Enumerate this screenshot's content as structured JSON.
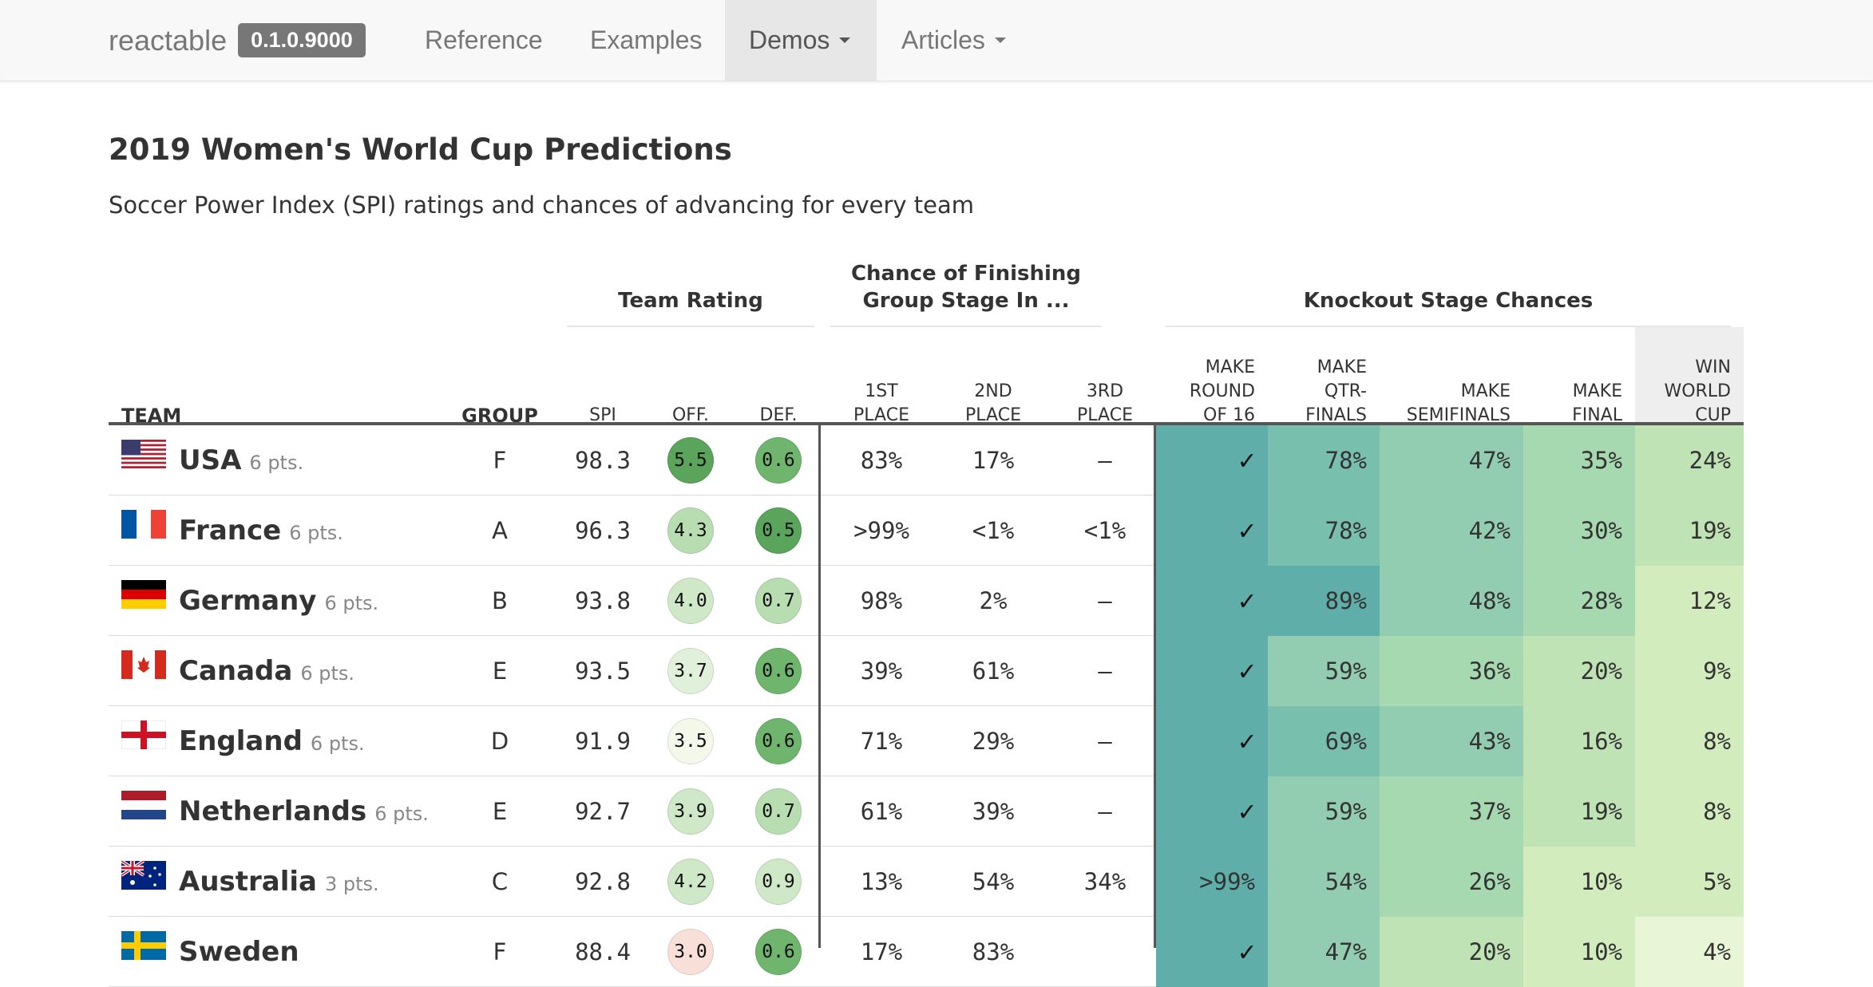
{
  "navbar": {
    "brand": "reactable",
    "version": "0.1.0.9000",
    "items": [
      {
        "label": "Reference",
        "active": false,
        "dropdown": false
      },
      {
        "label": "Examples",
        "active": false,
        "dropdown": false
      },
      {
        "label": "Demos",
        "active": true,
        "dropdown": true
      },
      {
        "label": "Articles",
        "active": false,
        "dropdown": true
      }
    ]
  },
  "page": {
    "title": "2019 Women's World Cup Predictions",
    "subtitle": "Soccer Power Index (SPI) ratings and chances of advancing for every team"
  },
  "table": {
    "groups": {
      "team_rating": "Team Rating",
      "group_stage": "Chance of Finishing Group Stage In ...",
      "knockout": "Knockout Stage Chances"
    },
    "columns": {
      "team": "Team",
      "group": "Group",
      "spi": "SPI",
      "off": "Off.",
      "def": "Def.",
      "first": "1st Place",
      "second": "2nd Place",
      "third": "3rd Place",
      "r16": "Make Round of 16",
      "qtr": "Make Qtr-finals",
      "semi": "Make Semifinals",
      "final": "Make Final",
      "win": "Win World Cup"
    },
    "rows": [
      {
        "flag": "usa-flag",
        "team": "USA",
        "pts": "6 pts.",
        "group": "F",
        "spi": "98.3",
        "off": "5.5",
        "def": "0.6",
        "first": "83%",
        "second": "17%",
        "third": "–",
        "r16": "✓",
        "qtr": "78%",
        "semi": "47%",
        "final": "35%",
        "win": "24%"
      },
      {
        "flag": "france-flag",
        "team": "France",
        "pts": "6 pts.",
        "group": "A",
        "spi": "96.3",
        "off": "4.3",
        "def": "0.5",
        "first": ">99%",
        "second": "<1%",
        "third": "<1%",
        "r16": "✓",
        "qtr": "78%",
        "semi": "42%",
        "final": "30%",
        "win": "19%"
      },
      {
        "flag": "germany-flag",
        "team": "Germany",
        "pts": "6 pts.",
        "group": "B",
        "spi": "93.8",
        "off": "4.0",
        "def": "0.7",
        "first": "98%",
        "second": "2%",
        "third": "–",
        "r16": "✓",
        "qtr": "89%",
        "semi": "48%",
        "final": "28%",
        "win": "12%"
      },
      {
        "flag": "canada-flag",
        "team": "Canada",
        "pts": "6 pts.",
        "group": "E",
        "spi": "93.5",
        "off": "3.7",
        "def": "0.6",
        "first": "39%",
        "second": "61%",
        "third": "–",
        "r16": "✓",
        "qtr": "59%",
        "semi": "36%",
        "final": "20%",
        "win": "9%"
      },
      {
        "flag": "england-flag",
        "team": "England",
        "pts": "6 pts.",
        "group": "D",
        "spi": "91.9",
        "off": "3.5",
        "def": "0.6",
        "first": "71%",
        "second": "29%",
        "third": "–",
        "r16": "✓",
        "qtr": "69%",
        "semi": "43%",
        "final": "16%",
        "win": "8%"
      },
      {
        "flag": "netherlands-flag",
        "team": "Netherlands",
        "pts": "6 pts.",
        "group": "E",
        "spi": "92.7",
        "off": "3.9",
        "def": "0.7",
        "first": "61%",
        "second": "39%",
        "third": "–",
        "r16": "✓",
        "qtr": "59%",
        "semi": "37%",
        "final": "19%",
        "win": "8%"
      },
      {
        "flag": "australia-flag",
        "team": "Australia",
        "pts": "3 pts.",
        "group": "C",
        "spi": "92.8",
        "off": "4.2",
        "def": "0.9",
        "first": "13%",
        "second": "54%",
        "third": "34%",
        "r16": ">99%",
        "qtr": "54%",
        "semi": "26%",
        "final": "10%",
        "win": "5%"
      },
      {
        "flag": "sweden-flag",
        "team": "Sweden",
        "pts": "",
        "group": "F",
        "spi": "88.4",
        "off": "3.0",
        "def": "0.6",
        "first": "17%",
        "second": "83%",
        "third": "",
        "r16": "✓",
        "qtr": "47%",
        "semi": "20%",
        "final": "10%",
        "win": "4%"
      }
    ]
  },
  "colors": {
    "accent_dark": "#555555",
    "off_scale": [
      "#f8e0d8",
      "#f4f8ea",
      "#e0f0da",
      "#cfe8c8",
      "#b8ddb1",
      "#8cc68a",
      "#6fb56e",
      "#5aa45b"
    ],
    "knockout_scale": [
      "#f4f9e8",
      "#e8f5d6",
      "#d3ecbe",
      "#bfe3b4",
      "#a6d9b0",
      "#93cdb1",
      "#78bfae",
      "#5faeaa"
    ]
  }
}
